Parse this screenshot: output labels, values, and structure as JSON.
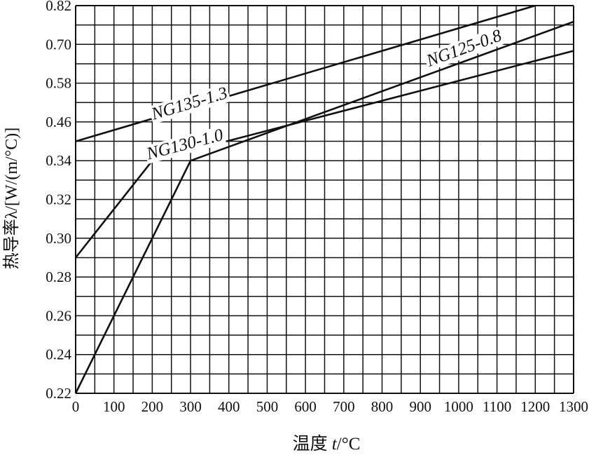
{
  "chart_data": {
    "type": "line",
    "title": "",
    "xlabel_prefix": "温度 ",
    "xlabel_var": "t",
    "xlabel_unit": "/°C",
    "ylabel": "热导率λ/[W/(m/°C)]",
    "x_ticks": [
      0,
      100,
      200,
      300,
      400,
      500,
      600,
      700,
      800,
      900,
      1000,
      1100,
      1200,
      1300
    ],
    "x_tick_labels": [
      "0",
      "100",
      "200",
      "300",
      "400",
      "500",
      "600",
      "700",
      "800",
      "900",
      "1000",
      "1100",
      "1200",
      "1300"
    ],
    "y_tick_labels": [
      "0.22",
      "0.24",
      "0.26",
      "0.28",
      "0.30",
      "0.32",
      "0.34",
      "0.46",
      "0.58",
      "0.70",
      "0.82"
    ],
    "xlim": [
      0,
      1300
    ],
    "grid": true,
    "legend": "none",
    "series": [
      {
        "name": "NG135-1.3",
        "x": [
          0,
          1200
        ],
        "y": [
          0.4,
          0.82
        ]
      },
      {
        "name": "NG130-1.0",
        "x": [
          0,
          200,
          1300
        ],
        "y": [
          0.29,
          0.34,
          0.68
        ]
      },
      {
        "name": "NG125-0.8",
        "x": [
          0,
          300,
          1300
        ],
        "y": [
          0.22,
          0.34,
          0.77
        ]
      }
    ]
  }
}
